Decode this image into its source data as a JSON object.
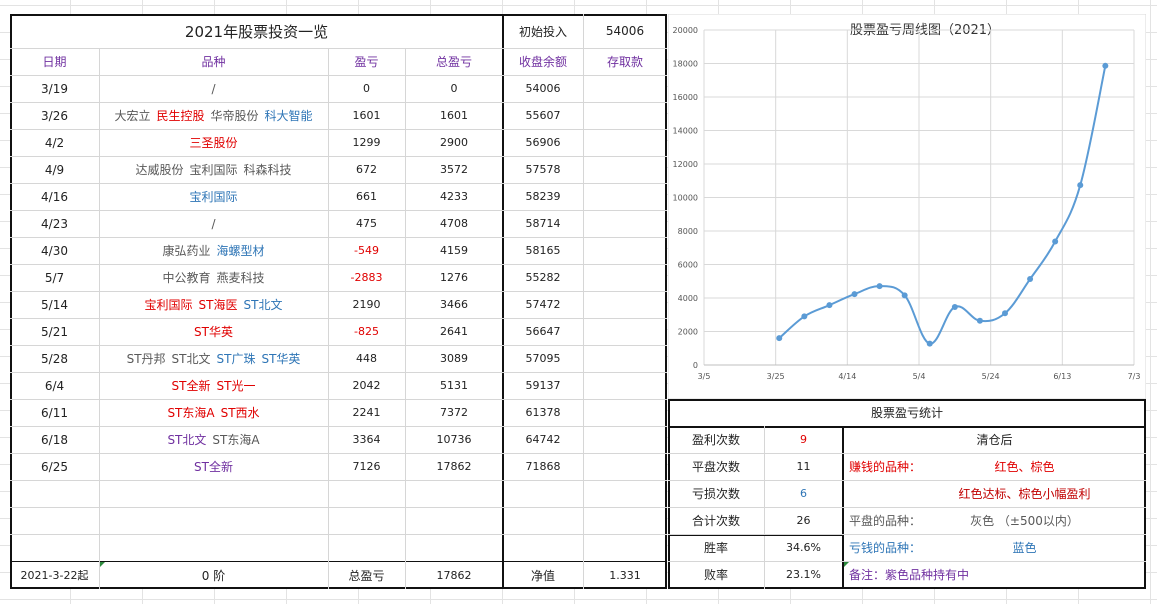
{
  "table": {
    "title": "2021年股票投资一览",
    "initial_label": "初始投入",
    "initial_value": "54006",
    "headers": [
      "日期",
      "品种",
      "盈亏",
      "总盈亏",
      "收盘余额",
      "存取款"
    ],
    "rows": [
      {
        "date": "3/19",
        "stocks": [
          {
            "n": "/",
            "c": "gray"
          }
        ],
        "pnl": "0",
        "pnl_color": "black",
        "total": "0",
        "balance": "54006"
      },
      {
        "date": "3/26",
        "stocks": [
          {
            "n": "大宏立",
            "c": "gray"
          },
          {
            "n": "民生控股",
            "c": "red"
          },
          {
            "n": "华帝股份",
            "c": "gray"
          },
          {
            "n": "科大智能",
            "c": "blue"
          }
        ],
        "pnl": "1601",
        "pnl_color": "black",
        "total": "1601",
        "balance": "55607"
      },
      {
        "date": "4/2",
        "stocks": [
          {
            "n": "三圣股份",
            "c": "red"
          }
        ],
        "pnl": "1299",
        "pnl_color": "black",
        "total": "2900",
        "balance": "56906"
      },
      {
        "date": "4/9",
        "stocks": [
          {
            "n": "达威股份",
            "c": "gray"
          },
          {
            "n": "宝利国际",
            "c": "gray"
          },
          {
            "n": "科森科技",
            "c": "gray"
          }
        ],
        "pnl": "672",
        "pnl_color": "black",
        "total": "3572",
        "balance": "57578"
      },
      {
        "date": "4/16",
        "stocks": [
          {
            "n": "宝利国际",
            "c": "blue"
          }
        ],
        "pnl": "661",
        "pnl_color": "black",
        "total": "4233",
        "balance": "58239"
      },
      {
        "date": "4/23",
        "stocks": [
          {
            "n": "/",
            "c": "gray"
          }
        ],
        "pnl": "475",
        "pnl_color": "black",
        "total": "4708",
        "balance": "58714"
      },
      {
        "date": "4/30",
        "stocks": [
          {
            "n": "康弘药业",
            "c": "gray"
          },
          {
            "n": "海螺型材",
            "c": "blue"
          }
        ],
        "pnl": "-549",
        "pnl_color": "red",
        "total": "4159",
        "balance": "58165"
      },
      {
        "date": "5/7",
        "stocks": [
          {
            "n": "中公教育",
            "c": "gray"
          },
          {
            "n": "燕麦科技",
            "c": "gray"
          }
        ],
        "pnl": "-2883",
        "pnl_color": "red",
        "total": "1276",
        "balance": "55282"
      },
      {
        "date": "5/14",
        "stocks": [
          {
            "n": "宝利国际",
            "c": "red"
          },
          {
            "n": "ST海医",
            "c": "red"
          },
          {
            "n": "ST北文",
            "c": "blue"
          }
        ],
        "pnl": "2190",
        "pnl_color": "black",
        "total": "3466",
        "balance": "57472"
      },
      {
        "date": "5/21",
        "stocks": [
          {
            "n": "ST华英",
            "c": "red"
          }
        ],
        "pnl": "-825",
        "pnl_color": "red",
        "total": "2641",
        "balance": "56647"
      },
      {
        "date": "5/28",
        "stocks": [
          {
            "n": "ST丹邦",
            "c": "gray"
          },
          {
            "n": "ST北文",
            "c": "gray"
          },
          {
            "n": "ST广珠",
            "c": "blue"
          },
          {
            "n": "ST华英",
            "c": "blue"
          }
        ],
        "pnl": "448",
        "pnl_color": "black",
        "total": "3089",
        "balance": "57095"
      },
      {
        "date": "6/4",
        "stocks": [
          {
            "n": "ST全新",
            "c": "red"
          },
          {
            "n": "ST光一",
            "c": "red"
          }
        ],
        "pnl": "2042",
        "pnl_color": "black",
        "total": "5131",
        "balance": "59137"
      },
      {
        "date": "6/11",
        "stocks": [
          {
            "n": "ST东海A",
            "c": "red"
          },
          {
            "n": "ST西水",
            "c": "red"
          }
        ],
        "pnl": "2241",
        "pnl_color": "black",
        "total": "7372",
        "balance": "61378"
      },
      {
        "date": "6/18",
        "stocks": [
          {
            "n": "ST北文",
            "c": "purple"
          },
          {
            "n": "ST东海A",
            "c": "gray"
          }
        ],
        "pnl": "3364",
        "pnl_color": "black",
        "total": "10736",
        "balance": "64742"
      },
      {
        "date": "6/25",
        "stocks": [
          {
            "n": "ST全新",
            "c": "purple"
          }
        ],
        "pnl": "7126",
        "pnl_color": "black",
        "total": "17862",
        "balance": "71868"
      }
    ],
    "footer": {
      "start": "2021-3-22起",
      "stage": "0 阶",
      "total_label": "总盈亏",
      "total_value": "17862",
      "net_label": "净值",
      "net_value": "1.331"
    }
  },
  "stats": {
    "title": "股票盈亏统计",
    "rows": [
      {
        "label": "盈利次数",
        "value": "9",
        "color": "red"
      },
      {
        "label": "平盘次数",
        "value": "11",
        "color": "black"
      },
      {
        "label": "亏损次数",
        "value": "6",
        "color": "blue"
      },
      {
        "label": "合计次数",
        "value": "26",
        "color": "black"
      },
      {
        "label": "胜率",
        "value": "34.6%",
        "color": "black"
      },
      {
        "label": "败率",
        "value": "23.1%",
        "color": "black"
      }
    ],
    "legend_title": "清仓后",
    "legend": [
      {
        "label": "赚钱的品种：",
        "desc": "红色、棕色",
        "label_color": "red",
        "desc_color": "red"
      },
      {
        "label": "",
        "desc": "红色达标、棕色小幅盈利",
        "label_color": "black",
        "desc_color": "brown"
      },
      {
        "label": "平盘的品种：",
        "desc": "灰色 （±500以内）",
        "label_color": "gray",
        "desc_color": "gray"
      },
      {
        "label": "亏钱的品种：",
        "desc": "蓝色",
        "label_color": "blue",
        "desc_color": "blue"
      },
      {
        "label": "备注：紫色品种持有中",
        "desc": "",
        "label_color": "purple",
        "desc_color": "purple"
      }
    ]
  },
  "chart_data": {
    "type": "line",
    "title": "股票盈亏周线图（2021）",
    "x_ticks": [
      "3/5",
      "3/25",
      "4/14",
      "5/4",
      "5/24",
      "6/13",
      "7/3"
    ],
    "y_ticks": [
      "0",
      "2000",
      "4000",
      "6000",
      "8000",
      "10000",
      "12000",
      "14000",
      "16000",
      "18000",
      "20000"
    ],
    "ylim": [
      0,
      20000
    ],
    "xlim": [
      "2021-03-05",
      "2021-07-03"
    ],
    "grid": true,
    "series": [
      {
        "points": [
          {
            "x": "2021-03-26",
            "y": 1601
          },
          {
            "x": "2021-04-02",
            "y": 2900
          },
          {
            "x": "2021-04-09",
            "y": 3572
          },
          {
            "x": "2021-04-16",
            "y": 4233
          },
          {
            "x": "2021-04-23",
            "y": 4708
          },
          {
            "x": "2021-04-30",
            "y": 4159
          },
          {
            "x": "2021-05-07",
            "y": 1276
          },
          {
            "x": "2021-05-14",
            "y": 3466
          },
          {
            "x": "2021-05-21",
            "y": 2641
          },
          {
            "x": "2021-05-28",
            "y": 3089
          },
          {
            "x": "2021-06-04",
            "y": 5131
          },
          {
            "x": "2021-06-11",
            "y": 7372
          },
          {
            "x": "2021-06-18",
            "y": 10736
          },
          {
            "x": "2021-06-25",
            "y": 17862
          }
        ],
        "color": "#5b9bd5"
      }
    ]
  }
}
